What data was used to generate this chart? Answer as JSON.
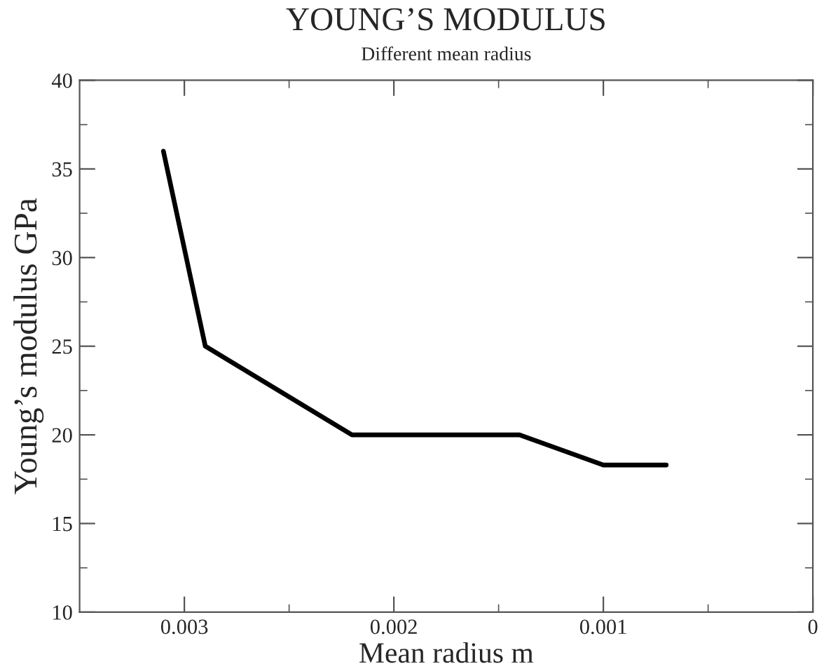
{
  "chart_data": {
    "type": "line",
    "title": "YOUNG’S MODULUS",
    "subtitle": "Different mean radius",
    "xlabel": "Mean radius m",
    "ylabel": "Young’s modulus GPa",
    "x": [
      0.0031,
      0.0029,
      0.0022,
      0.0014,
      0.001,
      0.0007
    ],
    "series": [
      {
        "color": "#000000",
        "values": [
          36,
          25,
          20,
          20,
          18.3,
          18.3
        ]
      }
    ],
    "xlim": [
      0.0035,
      0
    ],
    "xticks": [
      {
        "value": 0.003,
        "label": "0.003"
      },
      {
        "value": 0.0025,
        "label": null
      },
      {
        "value": 0.002,
        "label": "0.002"
      },
      {
        "value": 0.0015,
        "label": null
      },
      {
        "value": 0.001,
        "label": "0.001"
      },
      {
        "value": 0.0005,
        "label": null
      },
      0
    ],
    "ylim": [
      10,
      40
    ],
    "yticks": [
      10,
      {
        "value": 12.5,
        "label": null
      },
      15,
      {
        "value": 17.5,
        "label": null
      },
      20,
      {
        "value": 22.5,
        "label": null
      },
      25,
      {
        "value": 27.5,
        "label": null
      },
      30,
      {
        "value": 32.5,
        "label": null
      },
      35,
      {
        "value": 37.5,
        "label": null
      },
      40
    ],
    "grid": false,
    "legend": false,
    "marker": "none",
    "line_style": "solid"
  }
}
